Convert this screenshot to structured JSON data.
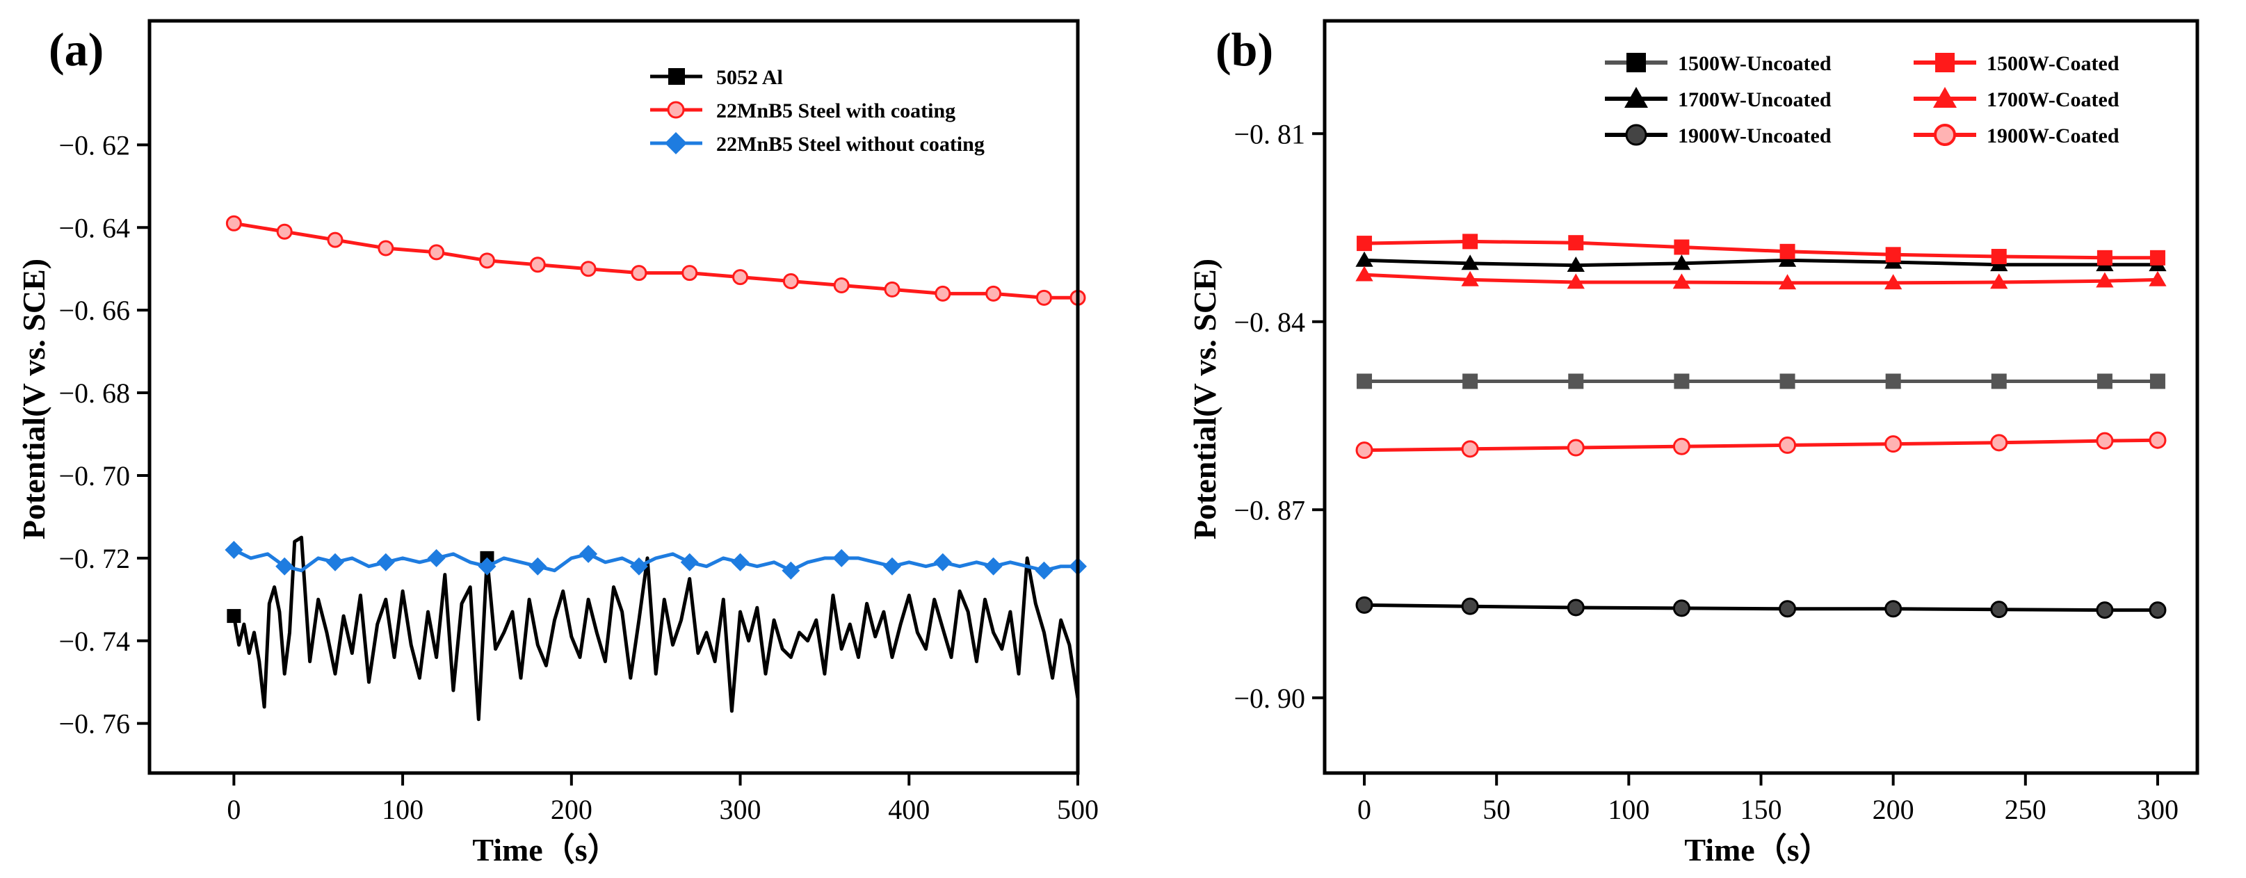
{
  "chart_data": [
    {
      "type": "line",
      "panel_label": "(a)",
      "xlabel": "Time（s）",
      "ylabel": "Potential(V vs. SCE)",
      "xlim": [
        -50,
        500
      ],
      "ylim": [
        -0.772,
        -0.59
      ],
      "xticks": [
        0,
        100,
        200,
        300,
        400,
        500
      ],
      "xtick_labels": [
        "0",
        "100",
        "200",
        "300",
        "400",
        "500"
      ],
      "yticks": [
        -0.62,
        -0.64,
        -0.66,
        -0.68,
        -0.7,
        -0.72,
        -0.74,
        -0.76
      ],
      "ytick_labels": [
        "−0. 62",
        "−0. 64",
        "−0. 66",
        "−0. 68",
        "−0. 70",
        "−0. 72",
        "−0. 74",
        "−0. 76"
      ],
      "legend_position": "top-right",
      "series": [
        {
          "name": "5052 Al",
          "color": "#000000",
          "marker": "square",
          "x": [
            0,
            3,
            6,
            9,
            12,
            15,
            18,
            21,
            24,
            27,
            30,
            33,
            36,
            40,
            45,
            50,
            55,
            60,
            65,
            70,
            75,
            80,
            85,
            90,
            95,
            100,
            105,
            110,
            115,
            120,
            125,
            130,
            135,
            140,
            145,
            150,
            155,
            160,
            165,
            170,
            175,
            180,
            185,
            190,
            195,
            200,
            205,
            210,
            215,
            220,
            225,
            230,
            235,
            240,
            245,
            250,
            255,
            260,
            265,
            270,
            275,
            280,
            285,
            290,
            295,
            300,
            305,
            310,
            315,
            320,
            325,
            330,
            335,
            340,
            345,
            350,
            355,
            360,
            365,
            370,
            375,
            380,
            385,
            390,
            395,
            400,
            405,
            410,
            415,
            420,
            425,
            430,
            435,
            440,
            445,
            450,
            455,
            460,
            465,
            470,
            475,
            480,
            485,
            490,
            495,
            500
          ],
          "y": [
            -0.734,
            -0.741,
            -0.736,
            -0.743,
            -0.738,
            -0.745,
            -0.756,
            -0.731,
            -0.727,
            -0.733,
            -0.748,
            -0.738,
            -0.716,
            -0.715,
            -0.745,
            -0.73,
            -0.738,
            -0.748,
            -0.734,
            -0.743,
            -0.729,
            -0.75,
            -0.736,
            -0.73,
            -0.744,
            -0.728,
            -0.741,
            -0.749,
            -0.733,
            -0.744,
            -0.724,
            -0.752,
            -0.731,
            -0.727,
            -0.759,
            -0.72,
            -0.742,
            -0.738,
            -0.733,
            -0.749,
            -0.73,
            -0.741,
            -0.746,
            -0.735,
            -0.728,
            -0.739,
            -0.744,
            -0.73,
            -0.738,
            -0.745,
            -0.727,
            -0.733,
            -0.749,
            -0.735,
            -0.72,
            -0.748,
            -0.73,
            -0.741,
            -0.735,
            -0.725,
            -0.743,
            -0.738,
            -0.745,
            -0.73,
            -0.757,
            -0.733,
            -0.74,
            -0.732,
            -0.748,
            -0.735,
            -0.742,
            -0.744,
            -0.738,
            -0.74,
            -0.735,
            -0.748,
            -0.729,
            -0.742,
            -0.736,
            -0.744,
            -0.731,
            -0.739,
            -0.733,
            -0.744,
            -0.736,
            -0.729,
            -0.738,
            -0.742,
            -0.73,
            -0.737,
            -0.744,
            -0.728,
            -0.733,
            -0.745,
            -0.73,
            -0.738,
            -0.742,
            -0.733,
            -0.748,
            -0.72,
            -0.731,
            -0.738,
            -0.749,
            -0.735,
            -0.741,
            -0.754
          ]
        },
        {
          "name": "22MnB5 Steel with coating",
          "color": "#ff1a1a",
          "marker": "circle",
          "x": [
            0,
            30,
            60,
            90,
            120,
            150,
            180,
            210,
            240,
            270,
            300,
            330,
            360,
            390,
            420,
            450,
            480,
            500
          ],
          "y": [
            -0.639,
            -0.641,
            -0.643,
            -0.645,
            -0.646,
            -0.648,
            -0.649,
            -0.65,
            -0.651,
            -0.651,
            -0.652,
            -0.653,
            -0.654,
            -0.655,
            -0.656,
            -0.656,
            -0.657,
            -0.657
          ]
        },
        {
          "name": "22MnB5 Steel without coating",
          "color": "#1e7ce0",
          "marker": "diamond",
          "x": [
            0,
            10,
            20,
            30,
            40,
            50,
            60,
            70,
            80,
            90,
            100,
            110,
            120,
            130,
            140,
            150,
            160,
            170,
            180,
            190,
            200,
            210,
            220,
            230,
            240,
            250,
            260,
            270,
            280,
            290,
            300,
            310,
            320,
            330,
            340,
            350,
            360,
            370,
            380,
            390,
            400,
            410,
            420,
            430,
            440,
            450,
            460,
            470,
            480,
            490,
            500
          ],
          "y": [
            -0.718,
            -0.72,
            -0.719,
            -0.722,
            -0.723,
            -0.72,
            -0.721,
            -0.72,
            -0.722,
            -0.721,
            -0.72,
            -0.721,
            -0.72,
            -0.719,
            -0.721,
            -0.722,
            -0.72,
            -0.721,
            -0.722,
            -0.723,
            -0.72,
            -0.719,
            -0.721,
            -0.72,
            -0.722,
            -0.72,
            -0.719,
            -0.721,
            -0.722,
            -0.72,
            -0.721,
            -0.722,
            -0.721,
            -0.723,
            -0.721,
            -0.72,
            -0.72,
            -0.72,
            -0.721,
            -0.722,
            -0.721,
            -0.722,
            -0.721,
            -0.722,
            -0.721,
            -0.722,
            -0.721,
            -0.722,
            -0.723,
            -0.722,
            -0.722
          ]
        }
      ],
      "marker_x": {
        "5052 Al": [
          0,
          150
        ],
        "22MnB5 Steel with coating": [
          0,
          30,
          60,
          90,
          120,
          150,
          180,
          210,
          240,
          270,
          300,
          330,
          360,
          390,
          420,
          450,
          480,
          500
        ],
        "22MnB5 Steel without coating": [
          0,
          30,
          60,
          90,
          120,
          150,
          180,
          210,
          240,
          270,
          300,
          330,
          360,
          390,
          420,
          450,
          480,
          500
        ]
      }
    },
    {
      "type": "line",
      "panel_label": "(b)",
      "xlabel": "Time（s）",
      "ylabel": "Potential(V vs. SCE)",
      "xlim": [
        -15,
        315
      ],
      "ylim": [
        -0.912,
        -0.792
      ],
      "xticks": [
        0,
        50,
        100,
        150,
        200,
        250,
        300
      ],
      "xtick_labels": [
        "0",
        "50",
        "100",
        "150",
        "200",
        "250",
        "300"
      ],
      "yticks": [
        -0.81,
        -0.84,
        -0.87,
        -0.9
      ],
      "ytick_labels": [
        "−0. 81",
        "−0. 84",
        "−0. 87",
        "−0. 90"
      ],
      "legend_position": "top",
      "series": [
        {
          "name": "1500W-Uncoated",
          "color": "#555555",
          "marker": "square",
          "x": [
            0,
            40,
            80,
            120,
            160,
            200,
            240,
            280,
            300
          ],
          "y": [
            -0.8495,
            -0.8495,
            -0.8495,
            -0.8495,
            -0.8495,
            -0.8495,
            -0.8495,
            -0.8495,
            -0.8495
          ]
        },
        {
          "name": "1700W-Uncoated",
          "color": "#000000",
          "marker": "triangle",
          "x": [
            0,
            40,
            80,
            120,
            160,
            200,
            240,
            280,
            300
          ],
          "y": [
            -0.8302,
            -0.8307,
            -0.831,
            -0.8307,
            -0.8302,
            -0.8305,
            -0.8309,
            -0.8309,
            -0.8309
          ]
        },
        {
          "name": "1900W-Uncoated",
          "color": "#000000",
          "marker": "circle",
          "x": [
            0,
            40,
            80,
            120,
            160,
            200,
            240,
            280,
            300
          ],
          "y": [
            -0.8852,
            -0.8854,
            -0.8856,
            -0.8857,
            -0.8858,
            -0.8858,
            -0.8859,
            -0.886,
            -0.886
          ]
        },
        {
          "name": "1500W-Coated",
          "color": "#ff1a1a",
          "marker": "square",
          "x": [
            0,
            40,
            80,
            120,
            160,
            200,
            240,
            280,
            300
          ],
          "y": [
            -0.8275,
            -0.8272,
            -0.8274,
            -0.8281,
            -0.8288,
            -0.8293,
            -0.8296,
            -0.8298,
            -0.8298
          ]
        },
        {
          "name": "1700W-Coated",
          "color": "#ff1a1a",
          "marker": "triangle",
          "x": [
            0,
            40,
            80,
            120,
            160,
            200,
            240,
            280,
            300
          ],
          "y": [
            -0.8325,
            -0.8333,
            -0.8337,
            -0.8337,
            -0.8338,
            -0.8338,
            -0.8337,
            -0.8335,
            -0.8333
          ]
        },
        {
          "name": "1900W-Coated",
          "color": "#ff1a1a",
          "marker": "circle",
          "x": [
            0,
            40,
            80,
            120,
            160,
            200,
            240,
            280,
            300
          ],
          "y": [
            -0.8605,
            -0.8603,
            -0.8601,
            -0.8599,
            -0.8597,
            -0.8595,
            -0.8593,
            -0.859,
            -0.8589
          ]
        }
      ],
      "legend_columns": [
        [
          "1500W-Uncoated",
          "1700W-Uncoated",
          "1900W-Uncoated"
        ],
        [
          "1500W-Coated",
          "1700W-Coated",
          "1900W-Coated"
        ]
      ]
    }
  ]
}
